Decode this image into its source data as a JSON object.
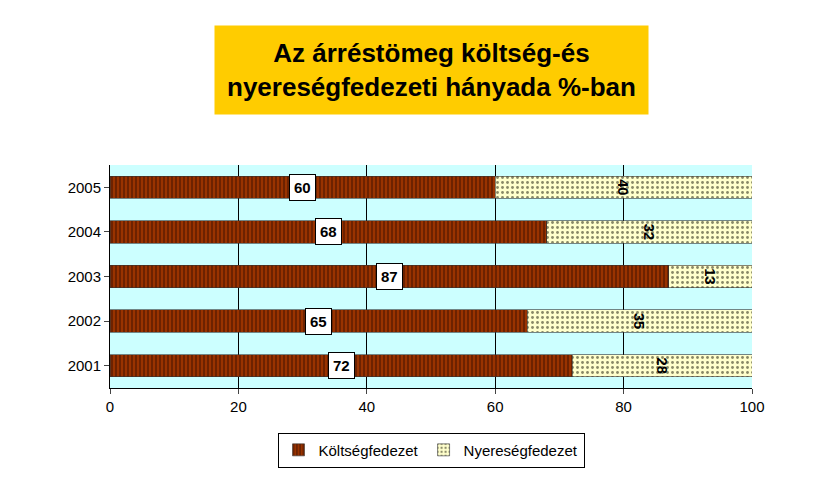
{
  "chart_data": {
    "type": "bar",
    "title": "Az árréstömeg költség-és\nnyereségfedezeti hányada %-ban",
    "orientation": "horizontal",
    "stacked": true,
    "data_labels": true,
    "categories": [
      "2001",
      "2002",
      "2003",
      "2004",
      "2005"
    ],
    "series": [
      {
        "name": "Költségfedezet",
        "color": "#993300",
        "values": [
          72,
          65,
          87,
          68,
          60
        ]
      },
      {
        "name": "Nyereségfedezet",
        "color": "#ffffcc",
        "values": [
          28,
          35,
          13,
          32,
          40
        ]
      }
    ],
    "xlim": [
      0,
      100
    ],
    "xticks": [
      0,
      20,
      40,
      60,
      80,
      100
    ],
    "grid": true,
    "legend": "bottom"
  }
}
